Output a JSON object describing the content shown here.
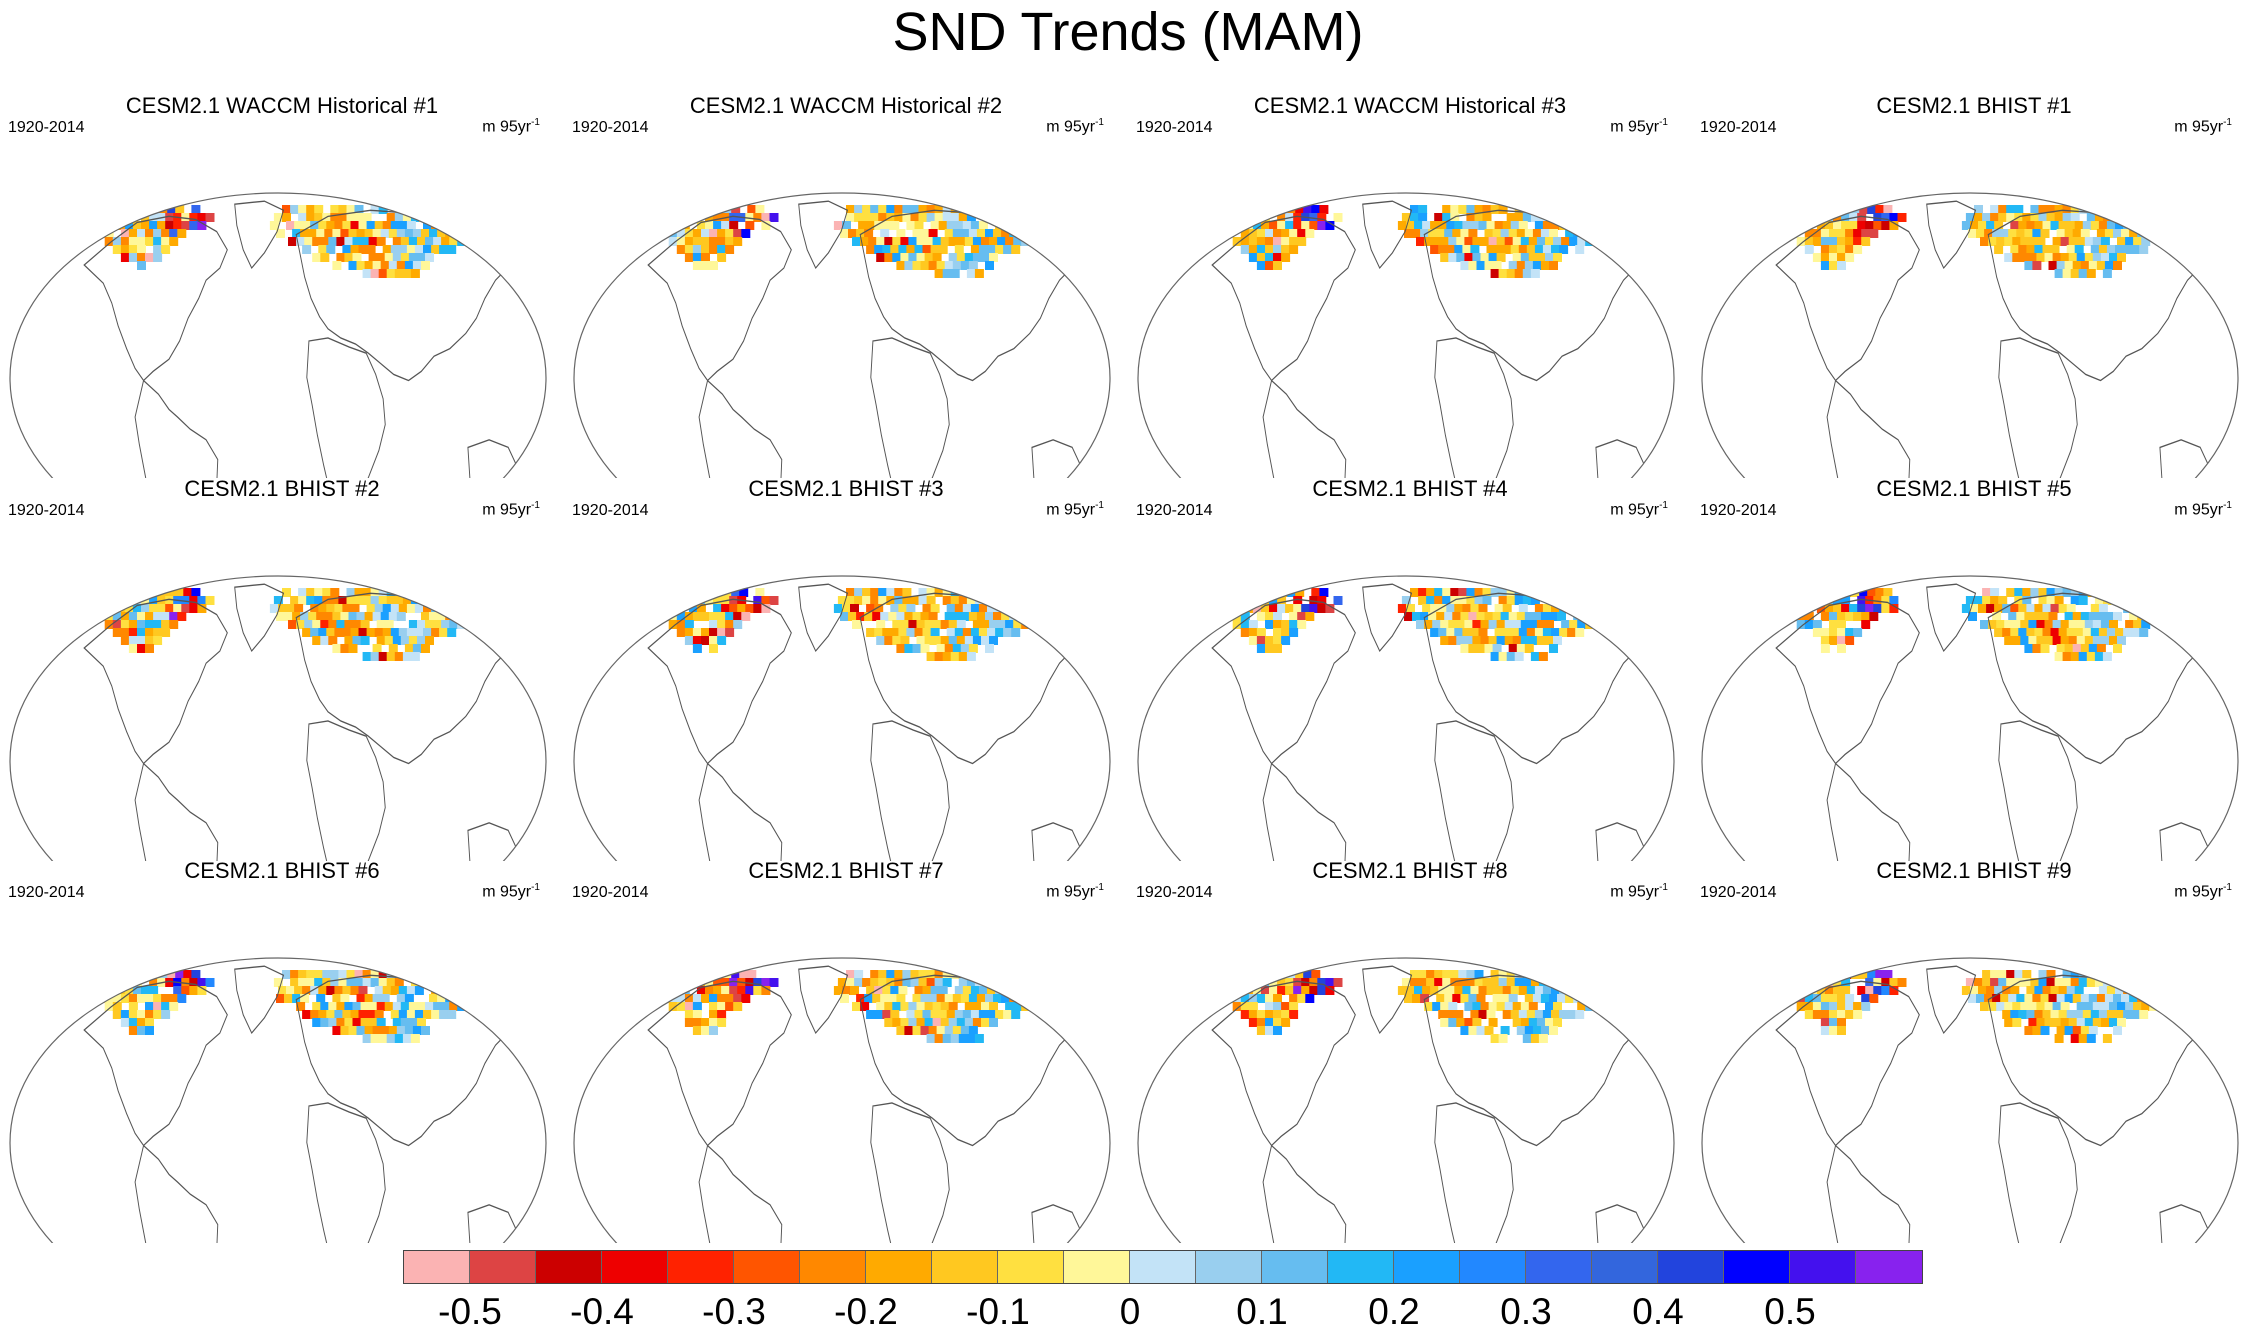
{
  "title": "SND Trends (MAM)",
  "panel_period": "1920-2014",
  "units": {
    "base": "m 95yr",
    "exp": "-1"
  },
  "panels": [
    {
      "title": "CESM2.1 WACCM Historical #1"
    },
    {
      "title": "CESM2.1 WACCM Historical #2"
    },
    {
      "title": "CESM2.1 WACCM Historical #3"
    },
    {
      "title": "CESM2.1 BHIST #1"
    },
    {
      "title": "CESM2.1 BHIST #2"
    },
    {
      "title": "CESM2.1 BHIST #3"
    },
    {
      "title": "CESM2.1 BHIST #4"
    },
    {
      "title": "CESM2.1 BHIST #5"
    },
    {
      "title": "CESM2.1 BHIST #6"
    },
    {
      "title": "CESM2.1 BHIST #7"
    },
    {
      "title": "CESM2.1 BHIST #8"
    },
    {
      "title": "CESM2.1 BHIST #9"
    }
  ],
  "colorbar": {
    "colors": [
      "#fbb3b3",
      "#dd4444",
      "#cc0000",
      "#ee0000",
      "#ff2200",
      "#ff5500",
      "#ff8800",
      "#ffaa00",
      "#ffc820",
      "#ffe040",
      "#fff799",
      "#c3e3f7",
      "#99cfef",
      "#66bdf0",
      "#22b8f5",
      "#1aa0ff",
      "#2288ff",
      "#3366ee",
      "#3366dd",
      "#2244dd",
      "#0000ff",
      "#4411ee",
      "#8822ee"
    ],
    "labels": [
      "-0.5",
      "-0.4",
      "-0.3",
      "-0.2",
      "-0.1",
      "0",
      "0.1",
      "0.2",
      "0.3",
      "0.4",
      "0.5"
    ]
  }
}
